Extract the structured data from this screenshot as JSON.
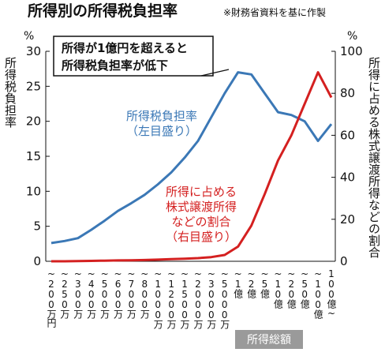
{
  "chart_data": {
    "type": "line",
    "title": "所得別の所得税負担率",
    "subtitle": "※財務省資料を基に作製",
    "y_label": "所得税負担率",
    "y2_label": "所得に占める株式譲渡所得などの割合",
    "y_unit": "%",
    "y2_unit": "%",
    "x_label": "所得総額",
    "annotation": [
      "所得が1億円を超えると",
      "所得税負担率が低下"
    ],
    "categories": [
      "~200万円",
      "~250万",
      "~300万",
      "~400万",
      "~500万",
      "~600万",
      "~700万",
      "~800万",
      "~1000万",
      "~1200万",
      "~1500万",
      "~2000万",
      "~3000万",
      "~5000万",
      "~1億",
      "~2億",
      "~5億",
      "~10億",
      "~20億",
      "~50億",
      "~100億",
      "100億~"
    ],
    "series": [
      {
        "name": "所得税負担率",
        "scale_label": "（左目盛り）",
        "color": "#3b78b6",
        "axis": "y",
        "values": [
          2.6,
          2.9,
          3.3,
          4.5,
          5.8,
          7.2,
          8.3,
          9.5,
          11.0,
          12.7,
          14.8,
          17.2,
          20.6,
          24.0,
          27.0,
          26.7,
          24.0,
          21.3,
          20.9,
          20.0,
          17.2,
          19.6
        ]
      },
      {
        "name": "所得に占める株式譲渡所得などの割合",
        "name_lines": [
          "所得に占める",
          "株式譲渡所得",
          "などの割合"
        ],
        "scale_label": "（右目盛り）",
        "color": "#d42020",
        "axis": "y2",
        "values": [
          0,
          0,
          0.1,
          0.2,
          0.3,
          0.4,
          0.5,
          0.6,
          0.8,
          1,
          1.2,
          1.5,
          2,
          3,
          7,
          17,
          32,
          48,
          60,
          75,
          90,
          78
        ]
      }
    ],
    "ylim": [
      0,
      30
    ],
    "yticks": [
      0,
      5,
      10,
      15,
      20,
      25,
      30
    ],
    "y2lim": [
      0,
      100
    ],
    "y2ticks": [
      0,
      20,
      40,
      60,
      80,
      100
    ]
  }
}
